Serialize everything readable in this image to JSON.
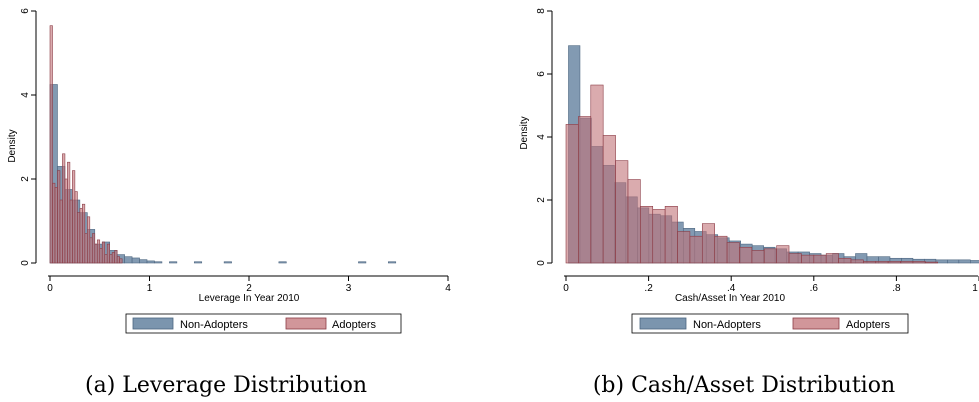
{
  "colors": {
    "non_adopters_fill": "#7b95ae",
    "non_adopters_stroke": "#4d6680",
    "adopters_fill": "#c27378",
    "adopters_stroke": "#8b3b45"
  },
  "chart_data": [
    {
      "type": "bar",
      "subtype": "histogram",
      "caption": "(a) Leverage Distribution",
      "xlabel": "Leverage In Year 2010",
      "ylabel": "Density",
      "xlim": [
        0,
        4
      ],
      "ylim": [
        0,
        6
      ],
      "xticks": [
        {
          "value": 0,
          "label": "0"
        },
        {
          "value": 1,
          "label": "1"
        },
        {
          "value": 2,
          "label": "2"
        },
        {
          "value": 3,
          "label": "3"
        },
        {
          "value": 4,
          "label": "4"
        }
      ],
      "yticks": [
        {
          "value": 0,
          "label": "0"
        },
        {
          "value": 2,
          "label": "2"
        },
        {
          "value": 4,
          "label": "4"
        },
        {
          "value": 6,
          "label": "6"
        }
      ],
      "legend": {
        "position": "bottom",
        "entries": [
          "Non-Adopters",
          "Adopters"
        ]
      },
      "series": [
        {
          "name": "Non-Adopters",
          "bin_width": 0.075,
          "bins_start": [
            0,
            0.075,
            0.15,
            0.225,
            0.3,
            0.375,
            0.45,
            0.525,
            0.6,
            0.675,
            0.75,
            0.825,
            0.9,
            0.975,
            1.05,
            1.2,
            1.45,
            1.75,
            2.3,
            3.1,
            3.4
          ],
          "values": [
            4.25,
            2.3,
            1.75,
            1.5,
            1.2,
            0.8,
            0.45,
            0.5,
            0.3,
            0.2,
            0.15,
            0.12,
            0.08,
            0.05,
            0.03,
            0.03,
            0.03,
            0.03,
            0.03,
            0.03,
            0.03
          ]
        },
        {
          "name": "Adopters",
          "bin_width": 0.025,
          "bins_start": [
            0.0,
            0.025,
            0.05,
            0.075,
            0.1,
            0.125,
            0.15,
            0.175,
            0.2,
            0.225,
            0.25,
            0.275,
            0.3,
            0.325,
            0.35,
            0.375,
            0.4,
            0.425,
            0.45,
            0.475,
            0.5,
            0.525,
            0.55,
            0.575,
            0.6,
            0.625,
            0.65,
            0.675,
            0.7
          ],
          "values": [
            5.65,
            1.9,
            1.8,
            2.2,
            1.5,
            2.6,
            2.0,
            2.4,
            1.5,
            2.2,
            1.7,
            1.2,
            1.3,
            1.4,
            0.7,
            1.1,
            0.6,
            0.7,
            0.45,
            0.55,
            0.35,
            0.5,
            0.2,
            0.45,
            0.2,
            0.25,
            0.3,
            0.15,
            0.1
          ]
        }
      ]
    },
    {
      "type": "bar",
      "subtype": "histogram",
      "caption": "(b) Cash/Asset Distribution",
      "xlabel": "Cash/Asset In Year 2010",
      "ylabel": "Density",
      "xlim": [
        0,
        1
      ],
      "ylim": [
        0,
        8
      ],
      "xticks": [
        {
          "value": 0,
          "label": "0"
        },
        {
          "value": 0.2,
          "label": ".2"
        },
        {
          "value": 0.4,
          "label": ".4"
        },
        {
          "value": 0.6,
          "label": ".6"
        },
        {
          "value": 0.8,
          "label": ".8"
        },
        {
          "value": 1,
          "label": "1"
        }
      ],
      "yticks": [
        {
          "value": 0,
          "label": "0"
        },
        {
          "value": 2,
          "label": "2"
        },
        {
          "value": 4,
          "label": "4"
        },
        {
          "value": 6,
          "label": "6"
        },
        {
          "value": 8,
          "label": "8"
        }
      ],
      "legend": {
        "position": "bottom",
        "entries": [
          "Non-Adopters",
          "Adopters"
        ]
      },
      "series": [
        {
          "name": "Non-Adopters",
          "bin_width": 0.0278,
          "bin_start": 0.006,
          "values": [
            6.9,
            4.6,
            3.7,
            3.1,
            2.55,
            2.1,
            1.75,
            1.55,
            1.5,
            1.3,
            1.1,
            1.0,
            0.9,
            0.8,
            0.7,
            0.6,
            0.55,
            0.5,
            0.45,
            0.35,
            0.35,
            0.3,
            0.25,
            0.3,
            0.2,
            0.3,
            0.2,
            0.2,
            0.15,
            0.15,
            0.12,
            0.12,
            0.1,
            0.1,
            0.1,
            0.08
          ]
        },
        {
          "name": "Adopters",
          "bin_width": 0.03,
          "bin_start": 0.0,
          "values": [
            4.4,
            4.65,
            5.65,
            4.05,
            3.25,
            2.65,
            1.8,
            1.7,
            1.8,
            1.0,
            0.85,
            1.25,
            0.85,
            0.65,
            0.5,
            0.4,
            0.45,
            0.55,
            0.3,
            0.25,
            0.25,
            0.3,
            0.15,
            0.1,
            0.05,
            0.05,
            0.05,
            0.05,
            0.05,
            0.03
          ]
        }
      ]
    }
  ]
}
